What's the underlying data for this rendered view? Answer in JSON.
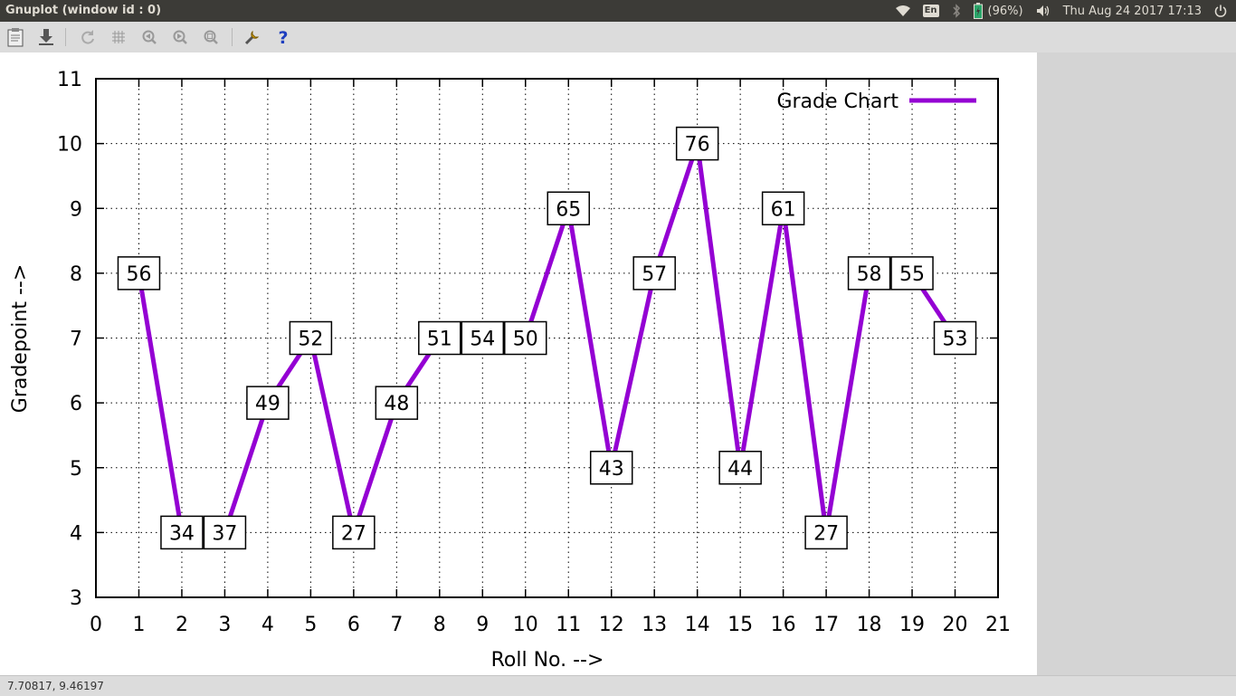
{
  "window": {
    "title": "Gnuplot (window id : 0)"
  },
  "top_panel": {
    "keyboard_layout": "En",
    "battery": "(96%)",
    "datetime": "Thu Aug 24 2017 17:13",
    "icons": [
      "wifi-icon",
      "keyboard-icon",
      "bluetooth-icon",
      "battery-icon",
      "volume-icon",
      "power-icon"
    ]
  },
  "toolbar": {
    "items": [
      "copy-clipboard-icon",
      "export-icon",
      "replot-icon",
      "grid-icon",
      "zoom-previous-icon",
      "zoom-next-icon",
      "autoscale-icon",
      "options-icon",
      "help-icon"
    ]
  },
  "status": {
    "coordinates": "7.70817,  9.46197"
  },
  "chart_data": {
    "type": "line",
    "title": "",
    "xlabel": "Roll No. -->",
    "ylabel": "Gradepoint -->",
    "xlim": [
      0,
      21
    ],
    "ylim": [
      3,
      11
    ],
    "xticks": [
      "0",
      "1",
      "2",
      "3",
      "4",
      "5",
      "6",
      "7",
      "8",
      "9",
      "10",
      "11",
      "12",
      "13",
      "14",
      "15",
      "16",
      "17",
      "18",
      "19",
      "20",
      "21"
    ],
    "yticks": [
      "3",
      "4",
      "5",
      "6",
      "7",
      "8",
      "9",
      "10",
      "11"
    ],
    "grid": true,
    "legend": "top-right",
    "color": "#9400d3",
    "series": [
      {
        "name": "Grade Chart",
        "x": [
          1,
          2,
          3,
          4,
          5,
          6,
          7,
          8,
          9,
          10,
          11,
          12,
          13,
          14,
          15,
          16,
          17,
          18,
          19,
          20
        ],
        "y": [
          8,
          4,
          4,
          6,
          7,
          4,
          6,
          7,
          7,
          7,
          9,
          5,
          8,
          10,
          5,
          9,
          4,
          8,
          8,
          7
        ],
        "labels": [
          "56",
          "34",
          "37",
          "49",
          "52",
          "27",
          "48",
          "51",
          "54",
          "50",
          "65",
          "43",
          "57",
          "76",
          "44",
          "61",
          "27",
          "58",
          "55",
          "53"
        ]
      }
    ]
  }
}
